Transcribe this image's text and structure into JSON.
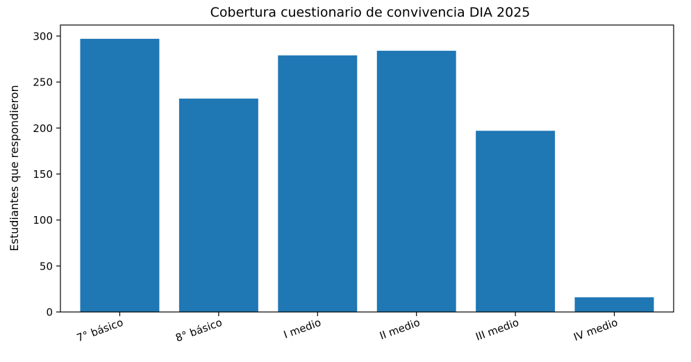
{
  "chart_data": {
    "type": "bar",
    "title": "Cobertura cuestionario de convivencia DIA 2025",
    "xlabel": "",
    "ylabel": "Estudiantes que respondieron",
    "categories": [
      "7° básico",
      "8° básico",
      "I medio",
      "II medio",
      "III medio",
      "IV medio"
    ],
    "values": [
      297,
      232,
      279,
      284,
      197,
      16
    ],
    "ylim": [
      0,
      312
    ],
    "yticks": [
      0,
      50,
      100,
      150,
      200,
      250,
      300
    ],
    "bar_color": "#1f77b4",
    "grid": false,
    "legend": "none"
  }
}
